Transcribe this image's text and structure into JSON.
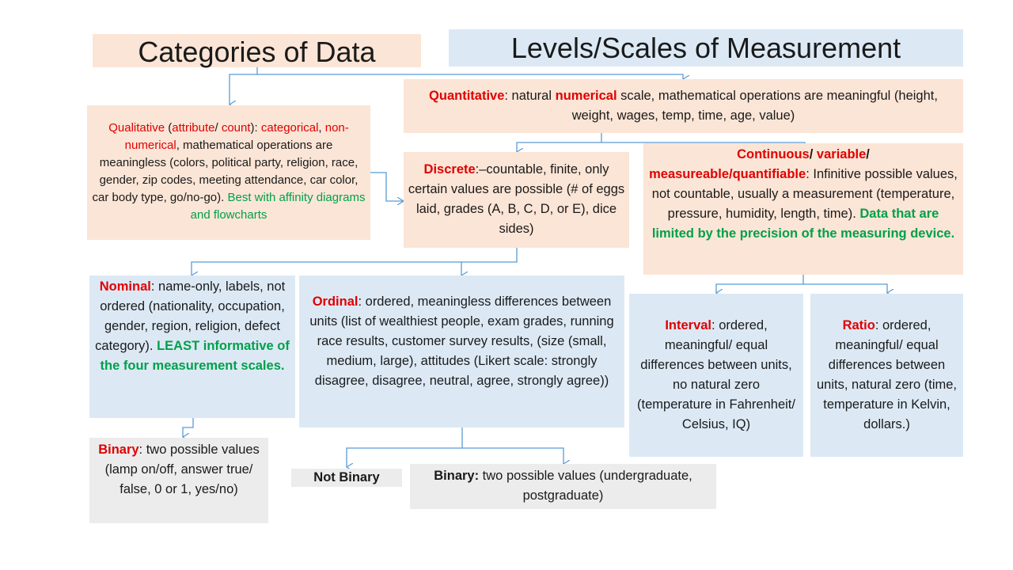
{
  "headers": {
    "categories": "Categories of Data",
    "levels": "Levels/Scales of Measurement"
  },
  "quantitative": {
    "term": "Quantitative",
    "t1": ":  natural ",
    "kw": "numerical",
    "t2": " scale, mathematical operations are meaningful (height, weight, wages, temp, time, age, value)"
  },
  "qualitative": {
    "term": "Qualitative",
    "t1": " (",
    "kw1": "attribute",
    "t2": "/ ",
    "kw2": "count",
    "t3": "): ",
    "kw3": "categorical",
    "t4": ", ",
    "kw4": "non-numerical",
    "t5": ", mathematical operations are meaningless (colors, political party, religion, race, gender, zip codes, meeting attendance, car color, car body type, go/no-go). ",
    "green": "Best with affinity diagrams and flowcharts"
  },
  "discrete": {
    "term": "Discrete",
    "text": ":–countable, finite, only certain values are possible (# of eggs laid, grades (A, B, C, D, or E), dice sides)"
  },
  "continuous": {
    "term1": "Continuous",
    "sep1": "/  ",
    "term2": "variable",
    "sep2": "/",
    "term3": "measureable/quantifiable",
    "text": ":  Infinitive possible values, not countable, usually a measurement (temperature, pressure, humidity, length, time). ",
    "green": "Data that are limited by the precision of the measuring device."
  },
  "nominal": {
    "term": "Nominal",
    "text": ": name-only, labels, not ordered (nationality, occupation, gender, region, religion, defect category). ",
    "green": "LEAST informative of the four measurement scales."
  },
  "ordinal": {
    "term": "Ordinal",
    "text": ": ordered, meaningless differences between units (list of wealthiest people, exam grades, running race results, customer survey results, (size (small, medium, large), attitudes (Likert scale: strongly disagree, disagree, neutral, agree, strongly agree))"
  },
  "interval": {
    "term": "Interval",
    "text": ": ordered, meaningful/ equal differences between units, no natural zero (temperature in Fahrenheit/ Celsius, IQ)"
  },
  "ratio": {
    "term": "Ratio",
    "text": ": ordered, meaningful/ equal differences between units, natural zero (time, temperature in Kelvin, dollars.)"
  },
  "binary_nominal": {
    "term": "Binary",
    "text": ": two possible values (lamp on/off, answer true/ false, 0 or 1, yes/no)"
  },
  "not_binary": "Not Binary",
  "binary_ordinal": {
    "term": "Binary:",
    "text": " two possible values (undergraduate, postgraduate)"
  },
  "colors": {
    "peach": "#fbe5d6",
    "blue": "#dce9f5",
    "gray": "#ececec",
    "red": "#e00000",
    "green": "#00a04a",
    "connector": "#5b9bd5"
  }
}
